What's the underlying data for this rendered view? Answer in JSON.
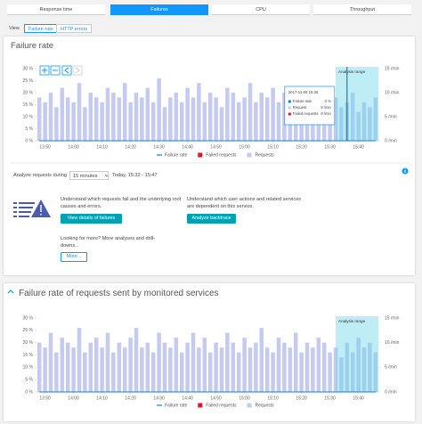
{
  "tabs": [
    "Response time",
    "Failures",
    "CPU",
    "Throughput"
  ],
  "view": {
    "label": "View",
    "options": [
      "Failure rate",
      "HTTP errors"
    ]
  },
  "analyze": {
    "label": "Analyze requests during",
    "duration": "15 minutes",
    "range": "Today, 15:32 - 15:47"
  },
  "actions": [
    {
      "text": "Understand which requests fail and the underlying root causes and errors.",
      "button": "View details of failures"
    },
    {
      "text": "Understand which user actions and related services are dependent on this service.",
      "button": "Analyze backtrace"
    }
  ],
  "more": {
    "text": "Looking for more? More analyses and drill-downs...",
    "button": "More..."
  },
  "chart_data": [
    {
      "type": "bar",
      "title": "Failure rate",
      "x": [
        828,
        830,
        832,
        834,
        836,
        838,
        840,
        842,
        844,
        846,
        848,
        850,
        852,
        854,
        856,
        858,
        860,
        862,
        864,
        866,
        868,
        870,
        872,
        874,
        876,
        878,
        880,
        882,
        884,
        886,
        888,
        890,
        892,
        894,
        896,
        898,
        900,
        902,
        904,
        906,
        908,
        910,
        912,
        914,
        916,
        918,
        920,
        922,
        924,
        926,
        928,
        930,
        932,
        934,
        936,
        938,
        940,
        942,
        944,
        946
      ],
      "xlim": [
        827,
        947
      ],
      "xticks": [
        {
          "value": 830,
          "label": "13:50"
        },
        {
          "value": 840,
          "label": "14:00"
        },
        {
          "value": 850,
          "label": "14:10"
        },
        {
          "value": 860,
          "label": "14:20"
        },
        {
          "value": 870,
          "label": "14:30"
        },
        {
          "value": 880,
          "label": "14:40"
        },
        {
          "value": 890,
          "label": "14:50"
        },
        {
          "value": 900,
          "label": "15:00"
        },
        {
          "value": 910,
          "label": "15:10"
        },
        {
          "value": 920,
          "label": "15:20"
        },
        {
          "value": 930,
          "label": "15:30"
        },
        {
          "value": 940,
          "label": "15:40"
        }
      ],
      "ylim": [
        0,
        30
      ],
      "yticks": [
        {
          "value": 0,
          "label": "0 %"
        },
        {
          "value": 5,
          "label": "5 %"
        },
        {
          "value": 10,
          "label": "10 %"
        },
        {
          "value": 15,
          "label": "15 %"
        },
        {
          "value": 20,
          "label": "20 %"
        },
        {
          "value": 25,
          "label": "25 %"
        },
        {
          "value": 30,
          "label": "30 %"
        }
      ],
      "y2lim": [
        0,
        15
      ],
      "y2ticks": [
        {
          "value": 0,
          "label": "0 /min"
        },
        {
          "value": 5,
          "label": "5 /min"
        },
        {
          "value": 10,
          "label": "10 /min"
        },
        {
          "value": 15,
          "label": "15 /min"
        }
      ],
      "analysis_range": {
        "from": 932,
        "to": 947,
        "label": "Analysis range"
      },
      "series": [
        {
          "name": "Failure rate",
          "type": "line",
          "color": "#1a7bd0",
          "values": [
            0,
            0,
            0,
            0,
            0,
            0,
            0,
            0,
            0,
            0,
            0,
            0,
            0,
            0,
            0,
            0,
            0,
            0,
            0,
            0,
            0,
            0,
            0,
            0,
            0,
            0,
            0,
            0,
            0,
            0,
            0,
            0,
            0,
            0,
            0,
            0,
            0,
            0,
            0,
            0,
            0,
            0,
            0,
            0,
            0,
            0,
            0,
            0,
            0,
            0,
            0,
            0,
            0,
            0,
            0,
            0,
            0,
            0,
            0,
            0
          ]
        },
        {
          "name": "Failed requests",
          "type": "bar",
          "axis": "y2",
          "color": "#dc172a",
          "values": [
            0,
            0,
            0,
            0,
            0,
            0,
            0,
            0,
            0,
            0,
            0,
            0,
            0,
            0,
            0,
            0,
            0,
            0,
            0,
            0,
            0,
            0,
            0,
            0,
            0,
            0,
            0,
            0,
            0,
            0,
            0,
            0,
            0,
            0,
            0,
            0,
            0,
            0,
            0,
            0,
            0,
            0,
            0,
            0,
            0,
            0,
            0,
            0,
            0,
            0,
            0,
            0,
            0,
            0,
            0,
            0,
            0,
            0,
            0,
            0
          ]
        },
        {
          "name": "Requests",
          "type": "bar",
          "axis": "y2",
          "color": "#c4caf0",
          "values": [
            9,
            8,
            10,
            7,
            11,
            9,
            8,
            12,
            7,
            10,
            9,
            8,
            11,
            10,
            9,
            12,
            8,
            10,
            9,
            11,
            8,
            13,
            7,
            9,
            10,
            8,
            11,
            9,
            12,
            8,
            10,
            9,
            7,
            11,
            10,
            8,
            9,
            12,
            8,
            10,
            9,
            11,
            8,
            10,
            9,
            7,
            10,
            8,
            11,
            9,
            8,
            6,
            9,
            7,
            8,
            10,
            6,
            8,
            7,
            9
          ]
        }
      ],
      "tooltip": {
        "x": 936,
        "time": "2017-11-08 15:36",
        "rows": [
          [
            "Failure rate",
            "0 %"
          ],
          [
            "Request",
            "8 /min"
          ],
          [
            "Failed requests",
            "0 /min"
          ]
        ]
      }
    },
    {
      "type": "bar",
      "title": "Failure rate of requests sent by monitored services",
      "x": [
        828,
        830,
        832,
        834,
        836,
        838,
        840,
        842,
        844,
        846,
        848,
        850,
        852,
        854,
        856,
        858,
        860,
        862,
        864,
        866,
        868,
        870,
        872,
        874,
        876,
        878,
        880,
        882,
        884,
        886,
        888,
        890,
        892,
        894,
        896,
        898,
        900,
        902,
        904,
        906,
        908,
        910,
        912,
        914,
        916,
        918,
        920,
        922,
        924,
        926,
        928,
        930,
        932,
        934,
        936,
        938,
        940,
        942,
        944,
        946
      ],
      "xlim": [
        827,
        947
      ],
      "xticks": [
        {
          "value": 830,
          "label": "13:50"
        },
        {
          "value": 840,
          "label": "14:00"
        },
        {
          "value": 850,
          "label": "14:10"
        },
        {
          "value": 860,
          "label": "14:20"
        },
        {
          "value": 870,
          "label": "14:30"
        },
        {
          "value": 880,
          "label": "14:40"
        },
        {
          "value": 890,
          "label": "14:50"
        },
        {
          "value": 900,
          "label": "15:00"
        },
        {
          "value": 910,
          "label": "15:10"
        },
        {
          "value": 920,
          "label": "15:20"
        },
        {
          "value": 930,
          "label": "15:30"
        },
        {
          "value": 940,
          "label": "15:40"
        }
      ],
      "ylim": [
        0,
        30
      ],
      "yticks": [
        {
          "value": 0,
          "label": "0 %"
        },
        {
          "value": 5,
          "label": "5 %"
        },
        {
          "value": 10,
          "label": "10 %"
        },
        {
          "value": 15,
          "label": "15 %"
        },
        {
          "value": 20,
          "label": "20 %"
        },
        {
          "value": 25,
          "label": "25 %"
        },
        {
          "value": 30,
          "label": "30 %"
        }
      ],
      "y2lim": [
        0,
        15
      ],
      "y2ticks": [
        {
          "value": 0,
          "label": "0 /min"
        },
        {
          "value": 5,
          "label": "5 /min"
        },
        {
          "value": 10,
          "label": "10 /min"
        },
        {
          "value": 15,
          "label": "15 /min"
        }
      ],
      "analysis_range": {
        "from": 932,
        "to": 947,
        "label": "Analysis range"
      },
      "series": [
        {
          "name": "Failure rate",
          "type": "line",
          "color": "#1a7bd0",
          "values": [
            0,
            0,
            0,
            0,
            0,
            0,
            0,
            0,
            0,
            0,
            0,
            0,
            0,
            0,
            0,
            0,
            0,
            0,
            0,
            0,
            0,
            0,
            0,
            0,
            0,
            0,
            0,
            0,
            0,
            0,
            0,
            0,
            0,
            0,
            0,
            0,
            0,
            0,
            0,
            0,
            0,
            0,
            0,
            0,
            0,
            0,
            0,
            0,
            0,
            0,
            0,
            0,
            0,
            0,
            0,
            0,
            0,
            0,
            0,
            0
          ]
        },
        {
          "name": "Failed requests",
          "type": "bar",
          "axis": "y2",
          "color": "#dc172a",
          "values": [
            0,
            0,
            0,
            0,
            0,
            0,
            0,
            0,
            0,
            0,
            0,
            0,
            0,
            0,
            0,
            0,
            0,
            0,
            0,
            0,
            0,
            0,
            0,
            0,
            0,
            0,
            0,
            0,
            0,
            0,
            0,
            0,
            0,
            0,
            0,
            0,
            0,
            0,
            0,
            0,
            0,
            0,
            0,
            0,
            0,
            0,
            0,
            0,
            0,
            0,
            0,
            0,
            0,
            0,
            0,
            0,
            0,
            0,
            0,
            0
          ]
        },
        {
          "name": "Requests",
          "type": "bar",
          "axis": "y2",
          "color": "#c4caf0",
          "values": [
            10,
            9,
            12,
            8,
            11,
            10,
            9,
            13,
            8,
            10,
            11,
            9,
            12,
            8,
            10,
            9,
            11,
            13,
            9,
            10,
            8,
            12,
            10,
            9,
            11,
            8,
            10,
            12,
            9,
            11,
            8,
            10,
            9,
            12,
            10,
            8,
            11,
            9,
            10,
            13,
            9,
            8,
            11,
            10,
            9,
            12,
            8,
            10,
            9,
            11,
            10,
            8,
            9,
            7,
            10,
            8,
            11,
            9,
            10,
            8
          ]
        }
      ]
    }
  ]
}
